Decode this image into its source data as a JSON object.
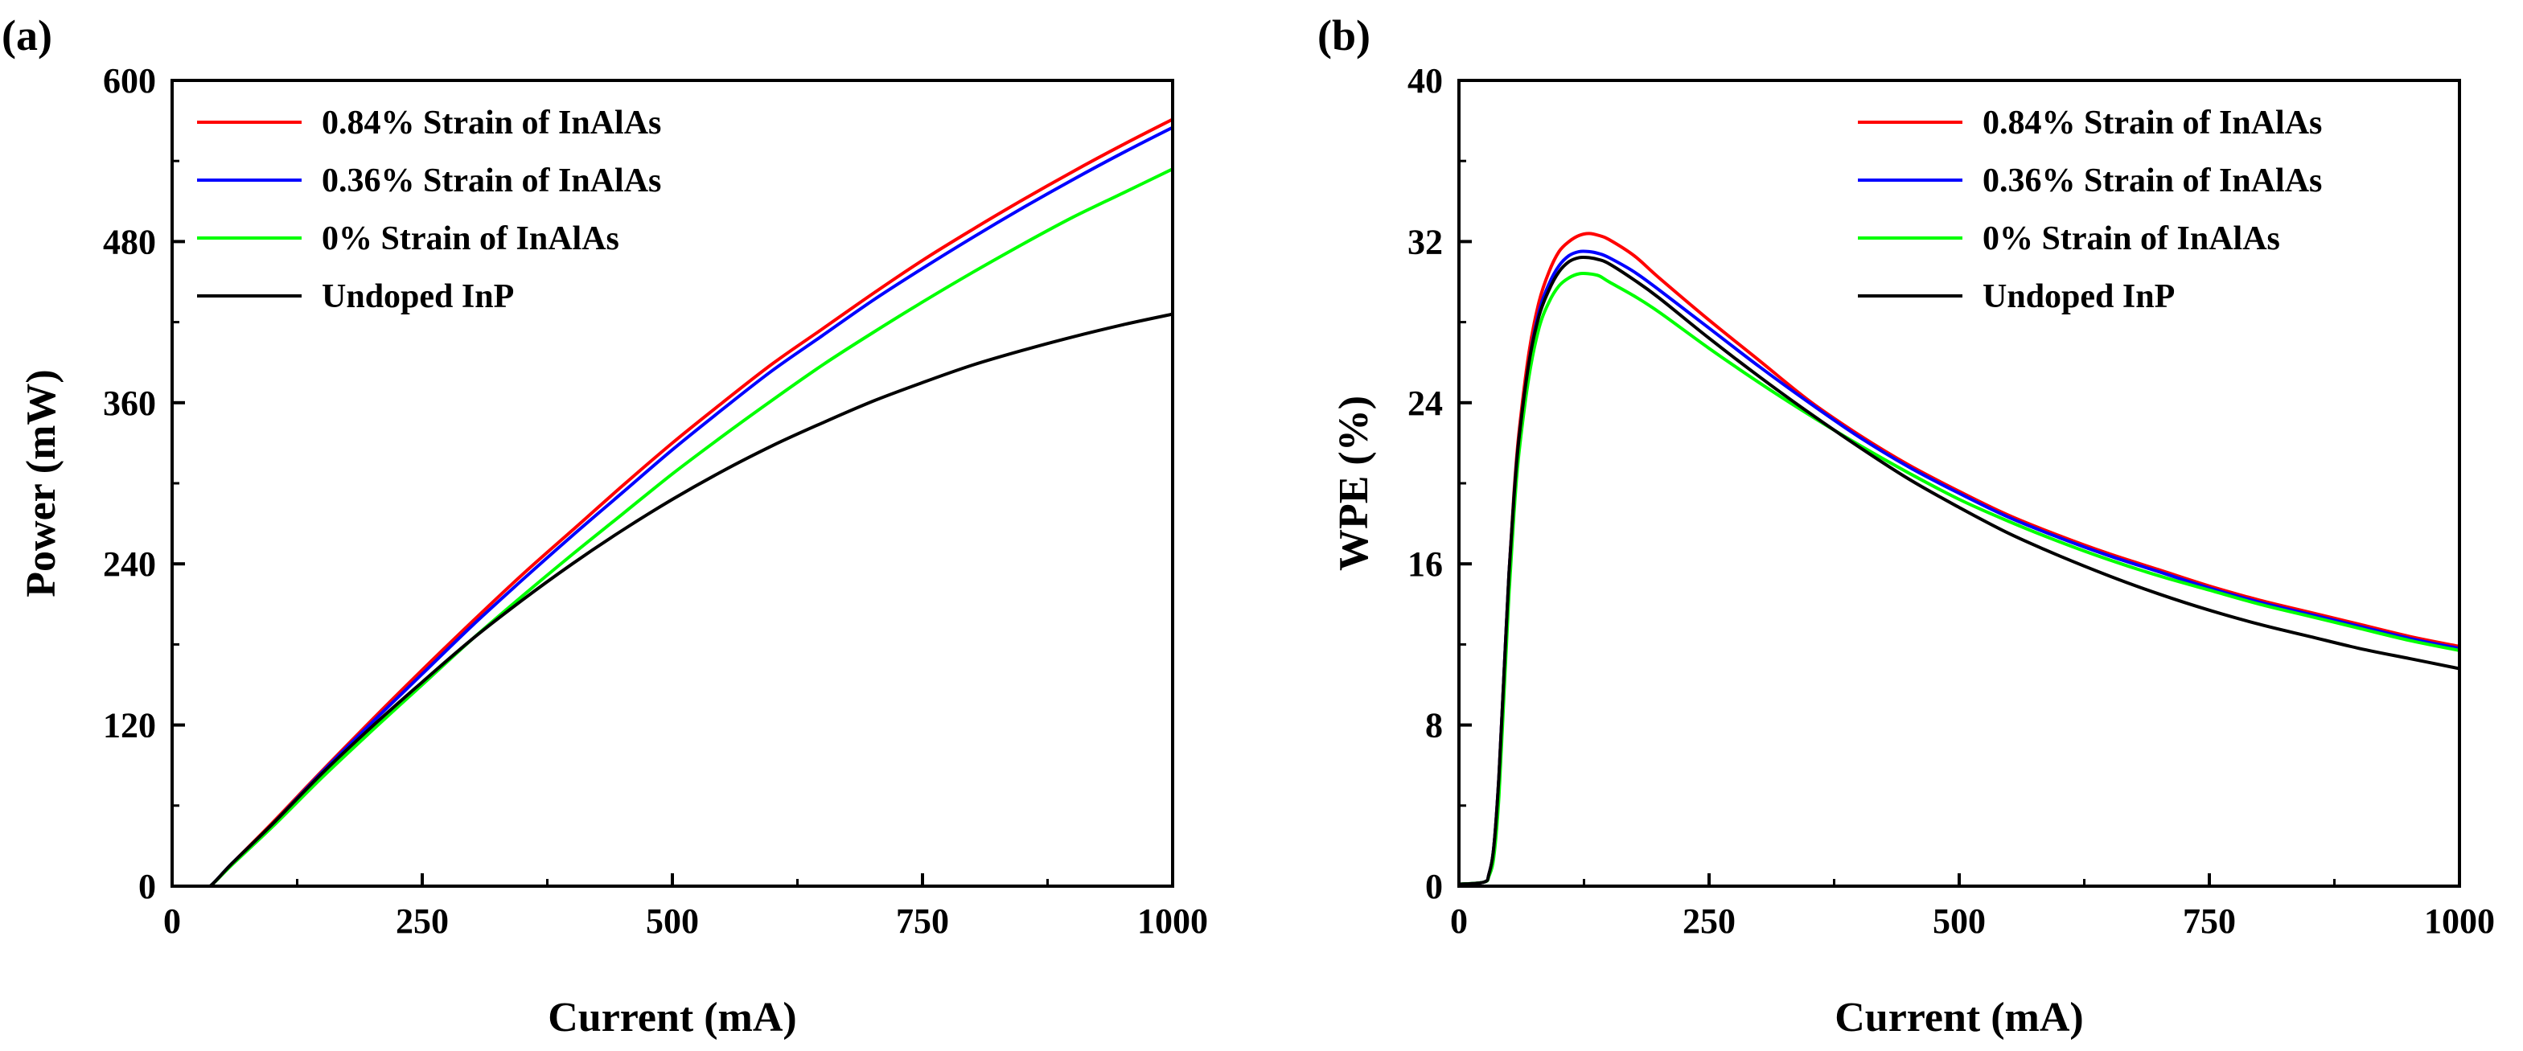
{
  "chart_data": [
    {
      "type": "line",
      "panel_label": "(a)",
      "xlabel": "Current (mA)",
      "ylabel": "Power (mW)",
      "xlim": [
        0,
        1000
      ],
      "ylim": [
        0,
        600
      ],
      "xticks": [
        0,
        250,
        500,
        750,
        1000
      ],
      "yticks": [
        0,
        120,
        240,
        360,
        480,
        600
      ],
      "legend": "top-left",
      "series": [
        {
          "name": "0.84% Strain of InAlAs",
          "color": "#ff0000",
          "x": [
            0,
            30,
            38,
            60,
            100,
            150,
            200,
            250,
            300,
            350,
            400,
            450,
            500,
            550,
            600,
            650,
            700,
            750,
            800,
            850,
            900,
            950,
            1000
          ],
          "y": [
            0,
            0,
            0,
            17,
            47,
            86,
            124,
            161,
            197,
            232,
            265,
            298,
            330,
            360,
            389,
            415,
            441,
            466,
            489,
            511,
            532,
            552,
            571
          ]
        },
        {
          "name": "0.36% Strain of InAlAs",
          "color": "#0000ff",
          "x": [
            0,
            30,
            38,
            60,
            100,
            150,
            200,
            250,
            300,
            350,
            400,
            450,
            500,
            550,
            600,
            650,
            700,
            750,
            800,
            850,
            900,
            950,
            1000
          ],
          "y": [
            0,
            0,
            0,
            17,
            46,
            85,
            122,
            158,
            194,
            228,
            261,
            293,
            325,
            355,
            384,
            410,
            436,
            460,
            483,
            505,
            526,
            546,
            565
          ]
        },
        {
          "name": "0% Strain of InAlAs",
          "color": "#00ff00",
          "x": [
            0,
            30,
            38,
            60,
            100,
            150,
            200,
            250,
            300,
            350,
            400,
            450,
            500,
            550,
            600,
            650,
            700,
            750,
            800,
            850,
            900,
            950,
            1000
          ],
          "y": [
            0,
            0,
            0,
            16,
            44,
            81,
            116,
            150,
            184,
            216,
            247,
            277,
            307,
            335,
            362,
            388,
            412,
            435,
            457,
            478,
            498,
            516,
            534
          ]
        },
        {
          "name": "Undoped InP",
          "color": "#000000",
          "x": [
            0,
            30,
            38,
            60,
            100,
            150,
            200,
            250,
            300,
            350,
            400,
            450,
            500,
            550,
            600,
            650,
            700,
            750,
            800,
            850,
            900,
            950,
            1000
          ],
          "y": [
            0,
            0,
            0,
            17,
            46,
            84,
            119,
            152,
            184,
            213,
            240,
            265,
            288,
            309,
            328,
            345,
            361,
            375,
            388,
            399,
            409,
            418,
            426
          ]
        }
      ]
    },
    {
      "type": "line",
      "panel_label": "(b)",
      "xlabel": "Current (mA)",
      "ylabel": "WPE (%)",
      "xlim": [
        0,
        1000
      ],
      "ylim": [
        0,
        40
      ],
      "xticks": [
        0,
        250,
        500,
        750,
        1000
      ],
      "yticks": [
        0,
        8,
        16,
        24,
        32,
        40
      ],
      "legend": "top-right",
      "series": [
        {
          "name": "0.84% Strain of InAlAs",
          "color": "#ff0000",
          "x": [
            0,
            25,
            30,
            35,
            40,
            45,
            50,
            55,
            60,
            70,
            80,
            90,
            100,
            110,
            120,
            130,
            140,
            150,
            175,
            200,
            250,
            300,
            350,
            400,
            450,
            500,
            550,
            600,
            650,
            700,
            750,
            800,
            850,
            900,
            950,
            1000
          ],
          "y": [
            0.1,
            0.2,
            0.6,
            2,
            5.5,
            10.5,
            15.5,
            19.5,
            22.5,
            26.5,
            29,
            30.5,
            31.5,
            32,
            32.3,
            32.4,
            32.3,
            32.1,
            31.3,
            30.2,
            28.1,
            26.1,
            24.1,
            22.4,
            20.9,
            19.6,
            18.4,
            17.4,
            16.5,
            15.7,
            14.9,
            14.2,
            13.6,
            13.0,
            12.4,
            11.9
          ]
        },
        {
          "name": "0.36% Strain of InAlAs",
          "color": "#0000ff",
          "x": [
            0,
            25,
            30,
            35,
            40,
            45,
            50,
            55,
            60,
            70,
            80,
            90,
            100,
            110,
            120,
            130,
            140,
            150,
            175,
            200,
            250,
            300,
            350,
            400,
            450,
            500,
            550,
            600,
            650,
            700,
            750,
            800,
            850,
            900,
            950,
            1000
          ],
          "y": [
            0.1,
            0.2,
            0.6,
            2,
            5.5,
            10.5,
            15.5,
            19.3,
            22.2,
            26,
            28.5,
            29.9,
            30.8,
            31.3,
            31.5,
            31.5,
            31.4,
            31.2,
            30.5,
            29.6,
            27.7,
            25.8,
            24.0,
            22.3,
            20.8,
            19.5,
            18.3,
            17.3,
            16.4,
            15.6,
            14.8,
            14.1,
            13.5,
            12.9,
            12.3,
            11.8
          ]
        },
        {
          "name": "0% Strain of InAlAs",
          "color": "#00ff00",
          "x": [
            0,
            25,
            30,
            35,
            40,
            45,
            50,
            55,
            60,
            70,
            80,
            90,
            100,
            110,
            120,
            130,
            140,
            150,
            175,
            200,
            250,
            300,
            350,
            400,
            450,
            500,
            550,
            600,
            650,
            700,
            750,
            800,
            850,
            900,
            950,
            1000
          ],
          "y": [
            0.1,
            0.2,
            0.5,
            1.5,
            4.5,
            9.5,
            14.5,
            18.5,
            21.5,
            25.3,
            27.7,
            29,
            29.8,
            30.2,
            30.4,
            30.4,
            30.3,
            30.0,
            29.3,
            28.5,
            26.7,
            25.0,
            23.4,
            21.9,
            20.5,
            19.2,
            18.1,
            17.1,
            16.2,
            15.4,
            14.7,
            14.0,
            13.4,
            12.8,
            12.2,
            11.7
          ]
        },
        {
          "name": "Undoped InP",
          "color": "#000000",
          "x": [
            0,
            25,
            30,
            35,
            40,
            45,
            50,
            55,
            60,
            70,
            80,
            90,
            100,
            110,
            120,
            130,
            140,
            150,
            175,
            200,
            250,
            300,
            350,
            400,
            450,
            500,
            550,
            600,
            650,
            700,
            750,
            800,
            850,
            900,
            950,
            1000
          ],
          "y": [
            0.1,
            0.2,
            0.6,
            2,
            5.5,
            10.5,
            15.5,
            19.3,
            22.2,
            26,
            28.3,
            29.6,
            30.5,
            31,
            31.2,
            31.2,
            31.1,
            30.9,
            30.1,
            29.2,
            27.2,
            25.3,
            23.5,
            21.8,
            20.2,
            18.8,
            17.5,
            16.4,
            15.4,
            14.5,
            13.7,
            13.0,
            12.4,
            11.8,
            11.3,
            10.8
          ]
        }
      ]
    }
  ]
}
